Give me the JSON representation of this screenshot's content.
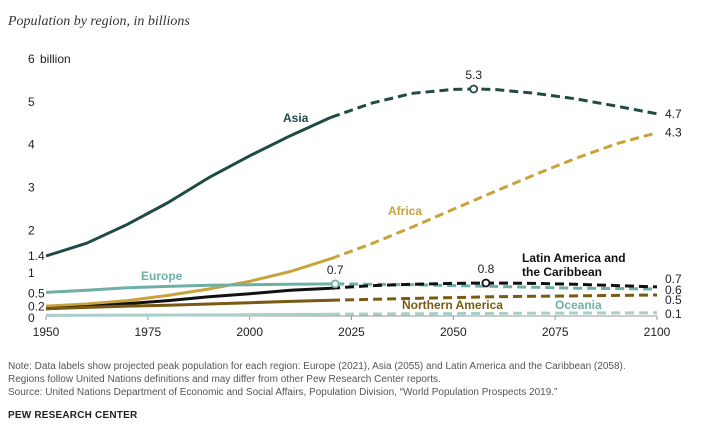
{
  "subtitle": "Population by region, in billions",
  "notes": {
    "line1": "Note: Data labels show projected peak population for each region: Europe (2021), Asia (2055) and Latin America and the Caribbean (2058).",
    "line2": "Regions follow United Nations definitions and may differ from other Pew Research Center reports.",
    "line3": "Source: United Nations Department of Economic and Social Affairs, Population Division, “World Population Prospects 2019.”"
  },
  "brand": "PEW RESEARCH CENTER",
  "chart_data": {
    "type": "line",
    "title": "Population by region, in billions",
    "xlim": [
      1950,
      2100
    ],
    "ylim": [
      0,
      6
    ],
    "x_ticks": [
      "1950",
      "1975",
      "2000",
      "2025",
      "2050",
      "2075",
      "2100"
    ],
    "x_tick_values": [
      1950,
      1975,
      2000,
      2025,
      2050,
      2075,
      2100
    ],
    "y_ticks": [
      "0",
      "0.2",
      "0.5",
      "1",
      "1.4",
      "2",
      "3",
      "4",
      "5",
      "6"
    ],
    "y_tick_values": [
      0,
      0.2,
      0.5,
      1,
      1.4,
      2,
      3,
      4,
      5,
      6
    ],
    "y_top_unit": "billion",
    "grid": false,
    "projection_start": 2020,
    "series": [
      {
        "name": "Asia",
        "color": "#1e4c44",
        "x": [
          1950,
          1960,
          1970,
          1980,
          1990,
          2000,
          2010,
          2020,
          2030,
          2040,
          2050,
          2055,
          2060,
          2070,
          2080,
          2090,
          2100
        ],
        "values": [
          1.4,
          1.7,
          2.14,
          2.65,
          3.23,
          3.74,
          4.21,
          4.64,
          4.97,
          5.2,
          5.29,
          5.3,
          5.29,
          5.2,
          5.07,
          4.9,
          4.72
        ],
        "peak": {
          "x": 2055,
          "value": 5.3,
          "label": "5.3"
        },
        "end_label": "4.7"
      },
      {
        "name": "Africa",
        "color": "#c9a23a",
        "x": [
          1950,
          1960,
          1970,
          1980,
          1990,
          2000,
          2010,
          2020,
          2030,
          2040,
          2050,
          2060,
          2070,
          2080,
          2090,
          2100
        ],
        "values": [
          0.23,
          0.28,
          0.36,
          0.48,
          0.63,
          0.81,
          1.04,
          1.34,
          1.69,
          2.08,
          2.49,
          2.9,
          3.3,
          3.68,
          4.02,
          4.28
        ],
        "end_label": "4.3"
      },
      {
        "name": "Europe",
        "color": "#6fb0a6",
        "x": [
          1950,
          1960,
          1970,
          1980,
          1990,
          2000,
          2010,
          2021,
          2030,
          2040,
          2050,
          2060,
          2070,
          2080,
          2090,
          2100
        ],
        "values": [
          0.55,
          0.6,
          0.66,
          0.69,
          0.72,
          0.73,
          0.74,
          0.75,
          0.74,
          0.73,
          0.71,
          0.69,
          0.67,
          0.65,
          0.64,
          0.63
        ],
        "peak": {
          "x": 2021,
          "value": 0.7,
          "label": "0.7"
        },
        "end_label": "0.6"
      },
      {
        "name": "Latin America and the Caribbean",
        "color": "#111111",
        "x": [
          1950,
          1960,
          1970,
          1980,
          1990,
          2000,
          2010,
          2020,
          2030,
          2040,
          2050,
          2058,
          2070,
          2080,
          2090,
          2100
        ],
        "values": [
          0.17,
          0.22,
          0.29,
          0.36,
          0.45,
          0.52,
          0.6,
          0.65,
          0.71,
          0.74,
          0.76,
          0.77,
          0.76,
          0.74,
          0.71,
          0.68
        ],
        "peak": {
          "x": 2058,
          "value": 0.8,
          "label": "0.8"
        },
        "end_label": "0.7"
      },
      {
        "name": "Northern America",
        "color": "#7a5a12",
        "x": [
          1950,
          1960,
          1970,
          1980,
          1990,
          2000,
          2010,
          2020,
          2030,
          2040,
          2050,
          2060,
          2070,
          2080,
          2090,
          2100
        ],
        "values": [
          0.17,
          0.2,
          0.23,
          0.25,
          0.28,
          0.31,
          0.34,
          0.37,
          0.39,
          0.41,
          0.43,
          0.45,
          0.46,
          0.47,
          0.48,
          0.49
        ],
        "end_label": "0.5"
      },
      {
        "name": "Oceania",
        "color": "#a8d0c8",
        "x": [
          1950,
          1975,
          2000,
          2020,
          2050,
          2075,
          2100
        ],
        "values": [
          0.013,
          0.021,
          0.031,
          0.043,
          0.057,
          0.067,
          0.075
        ],
        "end_label": "0.1"
      }
    ]
  }
}
